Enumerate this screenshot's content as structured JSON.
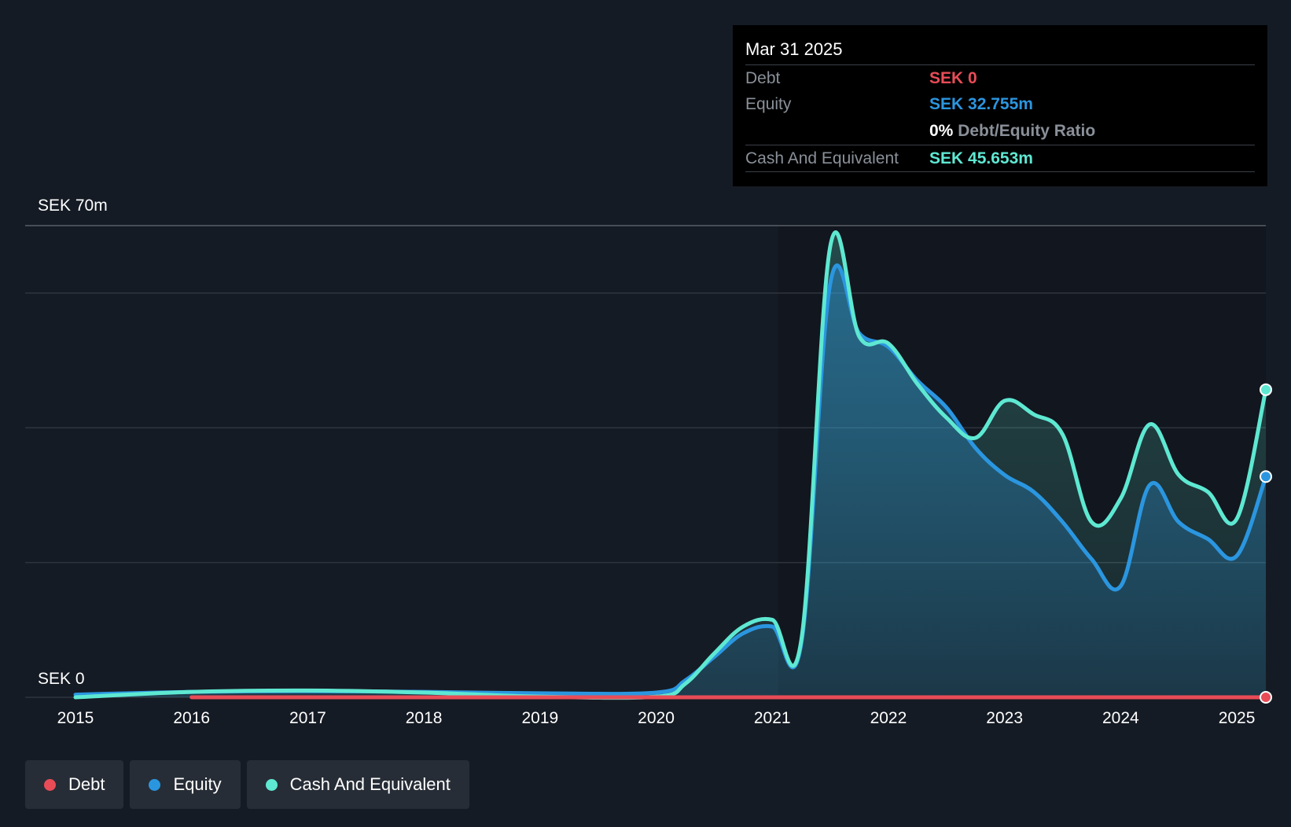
{
  "tooltip": {
    "date": "Mar 31 2025",
    "debt_label": "Debt",
    "debt_value": "SEK 0",
    "equity_label": "Equity",
    "equity_value": "SEK 32.755m",
    "ratio_value": "0%",
    "ratio_label": "Debt/Equity Ratio",
    "cash_label": "Cash And Equivalent",
    "cash_value": "SEK 45.653m"
  },
  "legend": [
    {
      "label": "Debt",
      "color": "#e84c57"
    },
    {
      "label": "Equity",
      "color": "#2b96e0"
    },
    {
      "label": "Cash And Equivalent",
      "color": "#5ee8d2"
    }
  ],
  "chart_data": {
    "type": "area",
    "y_top_label": "SEK 70m",
    "y_bottom_label": "SEK 0",
    "ylim": [
      0,
      70
    ],
    "xlim": [
      2015.0,
      2025.25
    ],
    "x_ticks": [
      "2015",
      "2016",
      "2017",
      "2018",
      "2019",
      "2020",
      "2021",
      "2022",
      "2023",
      "2024",
      "2025"
    ],
    "grid": true,
    "legend_position": "bottom-left",
    "colors": {
      "debt": "#e84c57",
      "equity": "#2b96e0",
      "cash": "#5ee8d2"
    },
    "series": [
      {
        "name": "Debt",
        "points": [
          [
            2016.0,
            0
          ],
          [
            2017.0,
            0
          ],
          [
            2018.0,
            0
          ],
          [
            2019.0,
            0
          ],
          [
            2020.0,
            0
          ],
          [
            2021.0,
            0
          ],
          [
            2022.0,
            0
          ],
          [
            2023.0,
            0
          ],
          [
            2024.0,
            0
          ],
          [
            2025.25,
            0
          ]
        ]
      },
      {
        "name": "Equity",
        "points": [
          [
            2015.0,
            0.4
          ],
          [
            2016.0,
            0.8
          ],
          [
            2017.0,
            0.9
          ],
          [
            2018.0,
            0.8
          ],
          [
            2019.0,
            0.6
          ],
          [
            2020.0,
            0.7
          ],
          [
            2020.25,
            2.5
          ],
          [
            2020.5,
            6.0
          ],
          [
            2020.75,
            9.5
          ],
          [
            2021.0,
            10.5
          ],
          [
            2021.25,
            8.0
          ],
          [
            2021.5,
            61.5
          ],
          [
            2021.75,
            54.0
          ],
          [
            2022.0,
            52.0
          ],
          [
            2022.25,
            47.0
          ],
          [
            2022.5,
            43.0
          ],
          [
            2022.75,
            37.0
          ],
          [
            2023.0,
            33.0
          ],
          [
            2023.25,
            30.5
          ],
          [
            2023.5,
            26.0
          ],
          [
            2023.75,
            20.5
          ],
          [
            2024.0,
            16.5
          ],
          [
            2024.25,
            31.5
          ],
          [
            2024.5,
            26.0
          ],
          [
            2024.75,
            23.5
          ],
          [
            2025.0,
            21.0
          ],
          [
            2025.25,
            32.755
          ]
        ]
      },
      {
        "name": "Cash And Equivalent",
        "points": [
          [
            2015.0,
            0.0
          ],
          [
            2016.0,
            0.8
          ],
          [
            2017.0,
            1.0
          ],
          [
            2018.0,
            0.7
          ],
          [
            2019.0,
            0.1
          ],
          [
            2020.0,
            0.1
          ],
          [
            2020.25,
            2.0
          ],
          [
            2020.5,
            6.5
          ],
          [
            2020.75,
            10.5
          ],
          [
            2021.0,
            11.5
          ],
          [
            2021.25,
            8.5
          ],
          [
            2021.5,
            67.0
          ],
          [
            2021.75,
            53.5
          ],
          [
            2022.0,
            52.5
          ],
          [
            2022.25,
            46.5
          ],
          [
            2022.5,
            41.5
          ],
          [
            2022.75,
            38.5
          ],
          [
            2023.0,
            44.0
          ],
          [
            2023.25,
            42.0
          ],
          [
            2023.5,
            39.0
          ],
          [
            2023.75,
            26.0
          ],
          [
            2024.0,
            29.5
          ],
          [
            2024.25,
            40.5
          ],
          [
            2024.5,
            33.0
          ],
          [
            2024.75,
            30.5
          ],
          [
            2025.0,
            26.5
          ],
          [
            2025.25,
            45.653
          ]
        ]
      }
    ]
  }
}
